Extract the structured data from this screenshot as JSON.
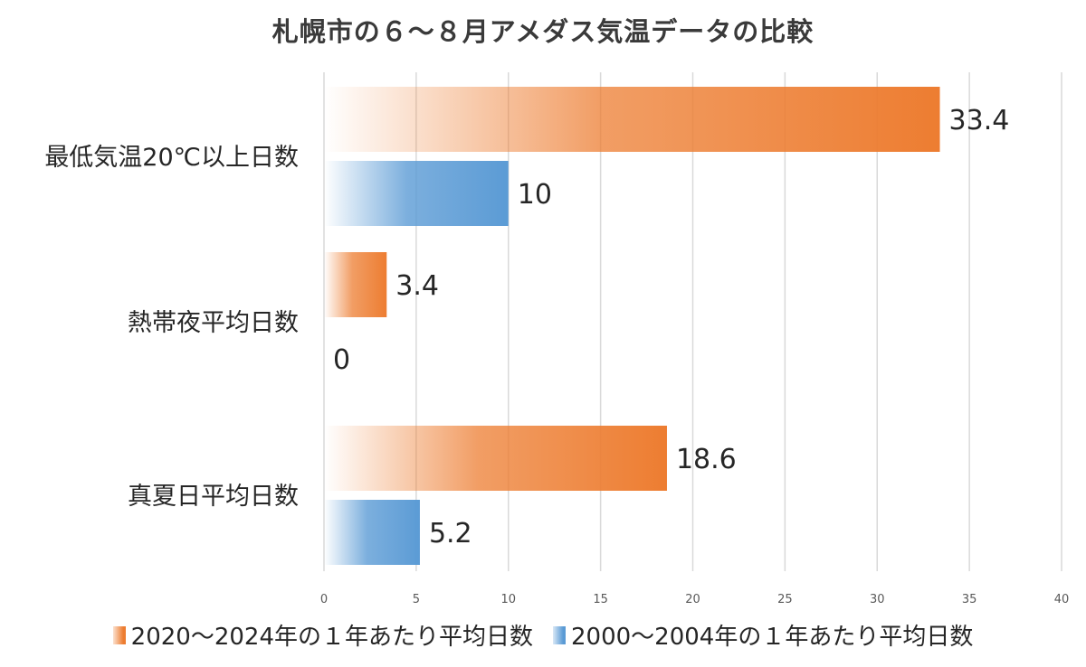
{
  "chart_data": {
    "type": "bar",
    "orientation": "horizontal",
    "title": "札幌市の６～８月アメダス気温データの比較",
    "categories": [
      "最低気温20℃以上日数",
      "熱帯夜平均日数",
      "真夏日平均日数"
    ],
    "series": [
      {
        "name": "2020～2024年の１年あたり平均日数",
        "values": [
          33.4,
          3.4,
          18.6
        ],
        "color": "#ed7d31"
      },
      {
        "name": "2000～2004年の１年あたり平均日数",
        "values": [
          10,
          0,
          5.2
        ],
        "color": "#5b9bd5"
      }
    ],
    "xlim": [
      0,
      40
    ],
    "ticks": [
      0,
      5,
      10,
      15,
      20,
      25,
      30,
      35,
      40
    ],
    "grid": true,
    "legend_position": "bottom",
    "data_labels": true
  }
}
